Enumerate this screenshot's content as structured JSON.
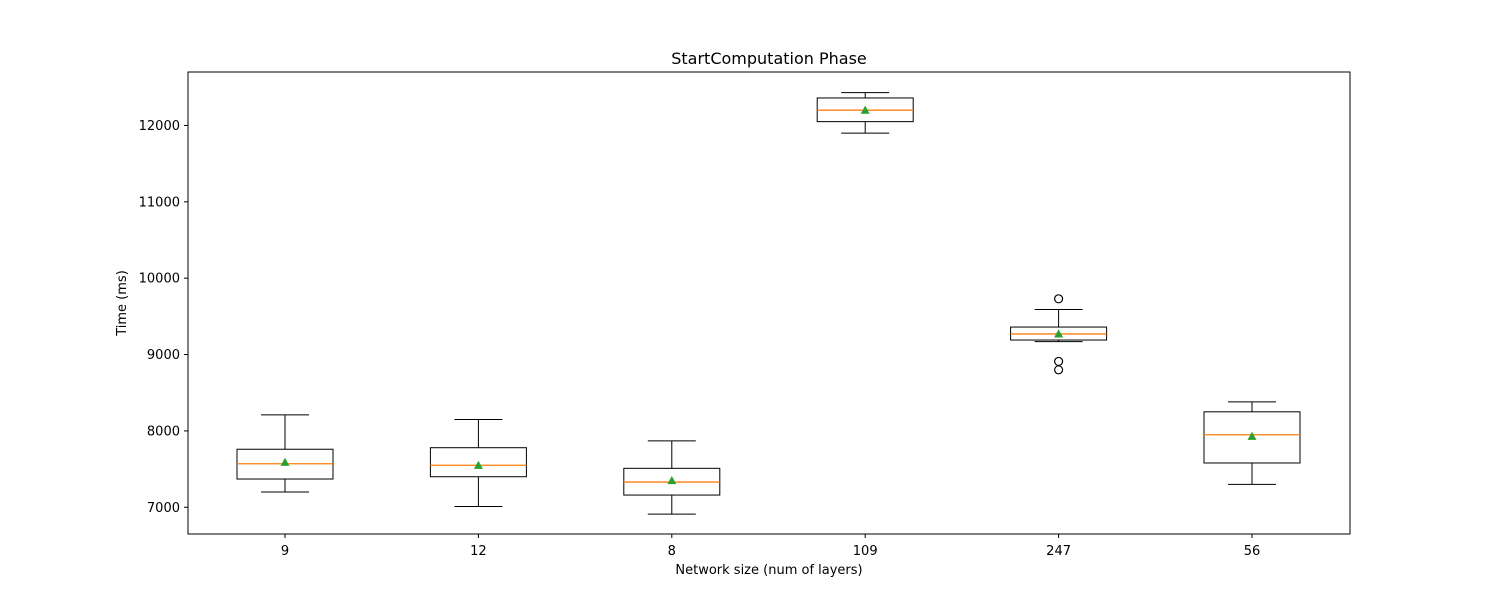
{
  "chart_data": {
    "type": "box",
    "title": "StartComputation Phase",
    "xlabel": "Network size (num of layers)",
    "ylabel": "Time (ms)",
    "ylim": [
      6650,
      12700
    ],
    "yticks": [
      7000,
      8000,
      9000,
      10000,
      11000,
      12000
    ],
    "grid": false,
    "categories": [
      "9",
      "12",
      "8",
      "109",
      "247",
      "56"
    ],
    "boxes": [
      {
        "category": "9",
        "whisker_low": 7200,
        "q1": 7370,
        "median": 7570,
        "q3": 7760,
        "whisker_high": 8210,
        "mean": 7590,
        "outliers": []
      },
      {
        "category": "12",
        "whisker_low": 7010,
        "q1": 7400,
        "median": 7550,
        "q3": 7780,
        "whisker_high": 8150,
        "mean": 7550,
        "outliers": []
      },
      {
        "category": "8",
        "whisker_low": 6910,
        "q1": 7160,
        "median": 7330,
        "q3": 7510,
        "whisker_high": 7870,
        "mean": 7350,
        "outliers": []
      },
      {
        "category": "109",
        "whisker_low": 11900,
        "q1": 12050,
        "median": 12200,
        "q3": 12360,
        "whisker_high": 12430,
        "mean": 12200,
        "outliers": []
      },
      {
        "category": "247",
        "whisker_low": 9170,
        "q1": 9190,
        "median": 9270,
        "q3": 9360,
        "whisker_high": 9590,
        "mean": 9270,
        "outliers": [
          9730,
          8910,
          8800
        ]
      },
      {
        "category": "56",
        "whisker_low": 7300,
        "q1": 7580,
        "median": 7950,
        "q3": 8250,
        "whisker_high": 8380,
        "mean": 7930,
        "outliers": []
      }
    ],
    "colors": {
      "box": "#000000",
      "median": "#ff7f0e",
      "mean": "#2ca02c",
      "outlier": "#000000"
    }
  }
}
